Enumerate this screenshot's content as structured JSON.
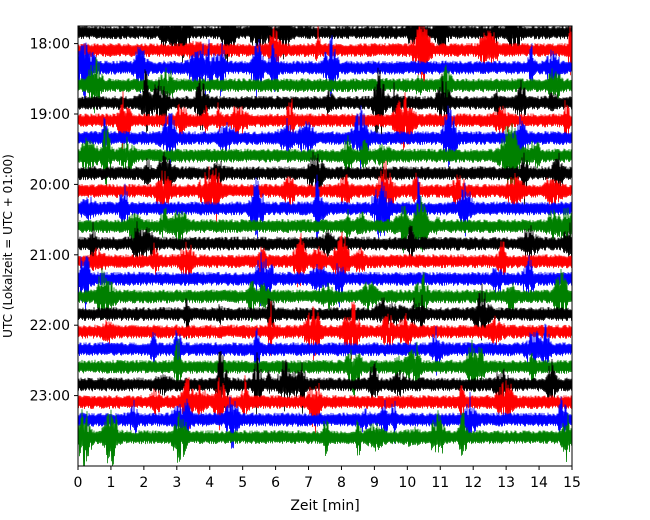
{
  "chart_data": {
    "type": "line",
    "title": "",
    "xlabel": "Zeit  [min]",
    "ylabel": "UTC (Lokalzeit = UTC + 01:00)",
    "xlim": [
      0,
      15
    ],
    "x_ticks": [
      "0",
      "1",
      "2",
      "3",
      "4",
      "5",
      "6",
      "7",
      "8",
      "9",
      "10",
      "11",
      "12",
      "13",
      "14",
      "15"
    ],
    "y_ticks": [
      "18:00",
      "19:00",
      "20:00",
      "21:00",
      "22:00",
      "23:00"
    ],
    "y_range": [
      "17:45",
      "24:00"
    ],
    "trace_interval_min": 15,
    "grid": false,
    "legend": "none",
    "colors": [
      "#000000",
      "#ff0000",
      "#0000ff",
      "#008000"
    ],
    "series": [
      {
        "start": "17:45",
        "color": "#000000"
      },
      {
        "start": "18:00",
        "color": "#ff0000"
      },
      {
        "start": "18:15",
        "color": "#0000ff"
      },
      {
        "start": "18:30",
        "color": "#008000"
      },
      {
        "start": "18:45",
        "color": "#000000"
      },
      {
        "start": "19:00",
        "color": "#ff0000"
      },
      {
        "start": "19:15",
        "color": "#0000ff"
      },
      {
        "start": "19:30",
        "color": "#008000"
      },
      {
        "start": "19:45",
        "color": "#000000"
      },
      {
        "start": "20:00",
        "color": "#ff0000"
      },
      {
        "start": "20:15",
        "color": "#0000ff"
      },
      {
        "start": "20:30",
        "color": "#008000"
      },
      {
        "start": "20:45",
        "color": "#000000"
      },
      {
        "start": "21:00",
        "color": "#ff0000"
      },
      {
        "start": "21:15",
        "color": "#0000ff"
      },
      {
        "start": "21:30",
        "color": "#008000"
      },
      {
        "start": "21:45",
        "color": "#000000"
      },
      {
        "start": "22:00",
        "color": "#ff0000"
      },
      {
        "start": "22:15",
        "color": "#0000ff"
      },
      {
        "start": "22:30",
        "color": "#008000"
      },
      {
        "start": "22:45",
        "color": "#000000"
      },
      {
        "start": "23:00",
        "color": "#ff0000"
      },
      {
        "start": "23:15",
        "color": "#0000ff"
      },
      {
        "start": "23:30",
        "color": "#008000"
      }
    ]
  }
}
